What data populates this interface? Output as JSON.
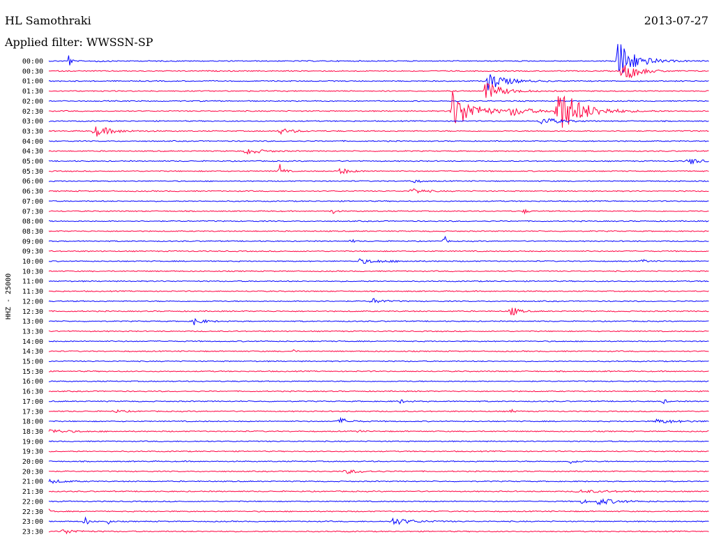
{
  "header": {
    "station": "HL Samothraki",
    "date": "2013-07-27",
    "filter": "Applied filter: WWSSN-SP"
  },
  "chart_data": {
    "type": "line",
    "title": "",
    "ylabel": "HHZ - 25000",
    "colors": {
      "even": "#0000ff",
      "odd": "#ff0040"
    },
    "rows": [
      "00:00",
      "00:30",
      "01:00",
      "01:30",
      "02:00",
      "02:30",
      "03:00",
      "03:30",
      "04:00",
      "04:30",
      "05:00",
      "05:30",
      "06:00",
      "06:30",
      "07:00",
      "07:30",
      "08:00",
      "08:30",
      "09:00",
      "09:30",
      "10:00",
      "10:30",
      "11:00",
      "11:30",
      "12:00",
      "12:30",
      "13:00",
      "13:30",
      "14:00",
      "14:30",
      "15:00",
      "15:30",
      "16:00",
      "16:30",
      "17:00",
      "17:30",
      "18:00",
      "18:30",
      "19:00",
      "19:30",
      "20:00",
      "20:30",
      "21:00",
      "21:30",
      "22:00",
      "22:30",
      "23:00",
      "23:30"
    ],
    "events": [
      {
        "row": 0,
        "x": 0.03,
        "amp": 14,
        "dur": 0.006
      },
      {
        "row": 0,
        "x": 0.07,
        "amp": 2,
        "dur": 0.02
      },
      {
        "row": 0,
        "x": 0.86,
        "amp": 34,
        "dur": 0.05
      },
      {
        "row": 1,
        "x": 0.87,
        "amp": 18,
        "dur": 0.04
      },
      {
        "row": 2,
        "x": 0.665,
        "amp": 14,
        "dur": 0.05
      },
      {
        "row": 3,
        "x": 0.66,
        "amp": 14,
        "dur": 0.05
      },
      {
        "row": 5,
        "x": 0.61,
        "amp": 30,
        "dur": 0.06
      },
      {
        "row": 5,
        "x": 0.7,
        "amp": 6,
        "dur": 0.06
      },
      {
        "row": 5,
        "x": 0.77,
        "amp": 36,
        "dur": 0.07
      },
      {
        "row": 6,
        "x": 0.745,
        "amp": 6,
        "dur": 0.05
      },
      {
        "row": 7,
        "x": 0.07,
        "amp": 8,
        "dur": 0.05
      },
      {
        "row": 7,
        "x": 0.35,
        "amp": 4,
        "dur": 0.04
      },
      {
        "row": 9,
        "x": 0.3,
        "amp": 5,
        "dur": 0.04
      },
      {
        "row": 10,
        "x": 0.97,
        "amp": 5,
        "dur": 0.03
      },
      {
        "row": 11,
        "x": 0.35,
        "amp": 10,
        "dur": 0.01
      },
      {
        "row": 11,
        "x": 0.44,
        "amp": 5,
        "dur": 0.03
      },
      {
        "row": 12,
        "x": 0.55,
        "amp": 3,
        "dur": 0.02
      },
      {
        "row": 13,
        "x": 0.55,
        "amp": 5,
        "dur": 0.03
      },
      {
        "row": 15,
        "x": 0.43,
        "amp": 4,
        "dur": 0.01
      },
      {
        "row": 15,
        "x": 0.72,
        "amp": 4,
        "dur": 0.01
      },
      {
        "row": 18,
        "x": 0.6,
        "amp": 7,
        "dur": 0.005
      },
      {
        "row": 18,
        "x": 0.46,
        "amp": 3,
        "dur": 0.005
      },
      {
        "row": 20,
        "x": 0.47,
        "amp": 3,
        "dur": 0.08
      },
      {
        "row": 20,
        "x": 0.9,
        "amp": 3,
        "dur": 0.01
      },
      {
        "row": 24,
        "x": 0.49,
        "amp": 4,
        "dur": 0.03
      },
      {
        "row": 25,
        "x": 0.7,
        "amp": 8,
        "dur": 0.02
      },
      {
        "row": 26,
        "x": 0.22,
        "amp": 5,
        "dur": 0.03
      },
      {
        "row": 29,
        "x": 0.37,
        "amp": 3,
        "dur": 0.005
      },
      {
        "row": 34,
        "x": 0.53,
        "amp": 3,
        "dur": 0.02
      },
      {
        "row": 34,
        "x": 0.93,
        "amp": 4,
        "dur": 0.01
      },
      {
        "row": 35,
        "x": 0.1,
        "amp": 2,
        "dur": 0.03
      },
      {
        "row": 35,
        "x": 0.7,
        "amp": 3,
        "dur": 0.01
      },
      {
        "row": 36,
        "x": 0.44,
        "amp": 5,
        "dur": 0.03
      },
      {
        "row": 36,
        "x": 0.92,
        "amp": 3,
        "dur": 0.07
      },
      {
        "row": 37,
        "x": 0.0,
        "amp": 3,
        "dur": 0.06
      },
      {
        "row": 37,
        "x": 0.47,
        "amp": 3,
        "dur": 0.005
      },
      {
        "row": 40,
        "x": 0.79,
        "amp": 3,
        "dur": 0.02
      },
      {
        "row": 41,
        "x": 0.45,
        "amp": 3,
        "dur": 0.05
      },
      {
        "row": 42,
        "x": 0.0,
        "amp": 3,
        "dur": 0.04
      },
      {
        "row": 43,
        "x": 0.8,
        "amp": 2,
        "dur": 0.1
      },
      {
        "row": 44,
        "x": 0.81,
        "amp": 10,
        "dur": 0.005
      },
      {
        "row": 44,
        "x": 0.83,
        "amp": 5,
        "dur": 0.06
      },
      {
        "row": 45,
        "x": 0.0,
        "amp": 3,
        "dur": 0.01
      },
      {
        "row": 46,
        "x": 0.055,
        "amp": 7,
        "dur": 0.01
      },
      {
        "row": 46,
        "x": 0.09,
        "amp": 8,
        "dur": 0.004
      },
      {
        "row": 46,
        "x": 0.52,
        "amp": 5,
        "dur": 0.06
      },
      {
        "row": 47,
        "x": 0.02,
        "amp": 4,
        "dur": 0.04
      }
    ]
  }
}
